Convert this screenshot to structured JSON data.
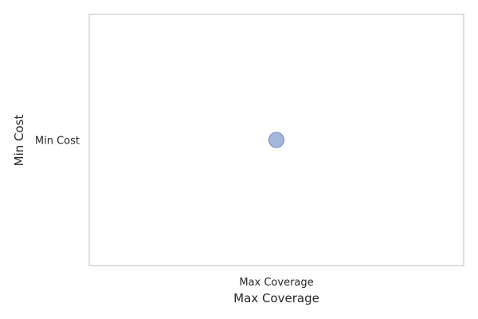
{
  "chart_data": {
    "type": "scatter",
    "title": "",
    "xlabel": "Max Coverage",
    "ylabel": "Min Cost",
    "x_categories": [
      "Max Coverage"
    ],
    "y_categories": [
      "Min Cost"
    ],
    "grid": false,
    "points": [
      {
        "x": "Max Coverage",
        "y": "Min Cost"
      }
    ],
    "colors": {
      "point_fill": "#7f9bcf",
      "point_stroke": "#6f8cc4",
      "frame": "#cccccc",
      "text": "#262626"
    }
  }
}
